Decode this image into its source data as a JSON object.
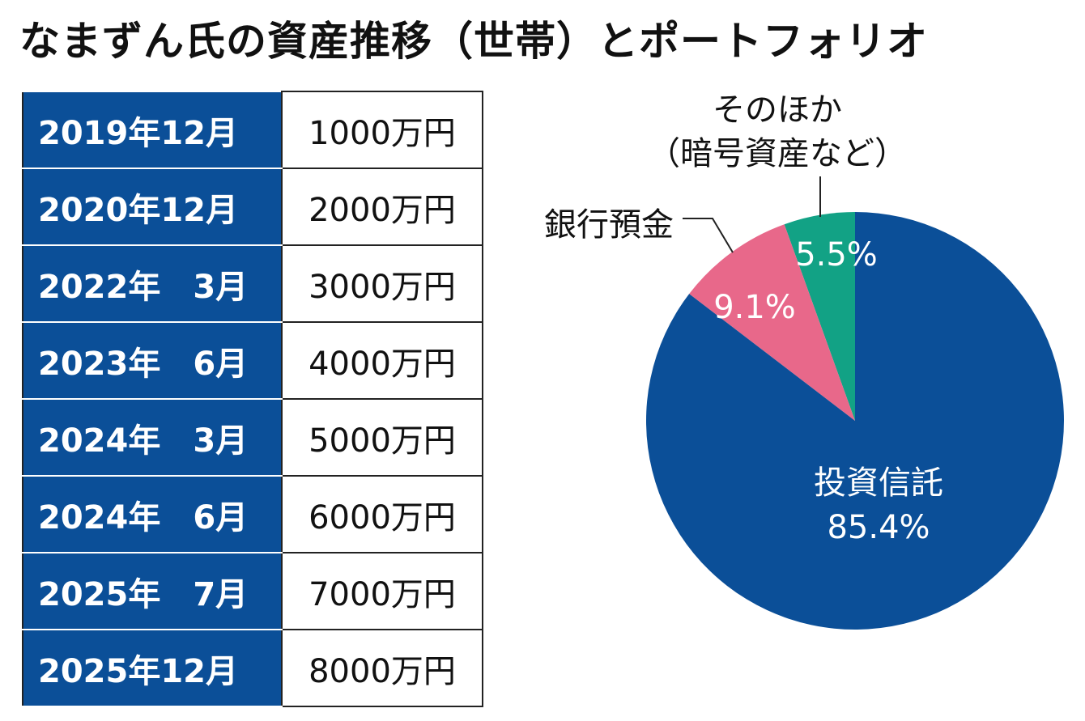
{
  "title": "なまずん氏の資産推移（世帯）とポートフォリオ",
  "table": {
    "rows": [
      [
        "2019年12月",
        "1000万円"
      ],
      [
        "2020年12月",
        "2000万円"
      ],
      [
        "2022年　3月",
        "3000万円"
      ],
      [
        "2023年　6月",
        "4000万円"
      ],
      [
        "2024年　3月",
        "5000万円"
      ],
      [
        "2024年　6月",
        "6000万円"
      ],
      [
        "2025年　7月",
        "7000万円"
      ],
      [
        "2025年12月",
        "8000万円"
      ]
    ]
  },
  "chart_data": {
    "type": "pie",
    "categories": [
      "投資信託",
      "銀行預金",
      "そのほか\n（暗号資産など）"
    ],
    "values": [
      85.4,
      9.1,
      5.5
    ],
    "value_labels": [
      "85.4%",
      "9.1%",
      "5.5%"
    ],
    "colors": [
      "#0b4f98",
      "#e8688a",
      "#12a285"
    ]
  }
}
